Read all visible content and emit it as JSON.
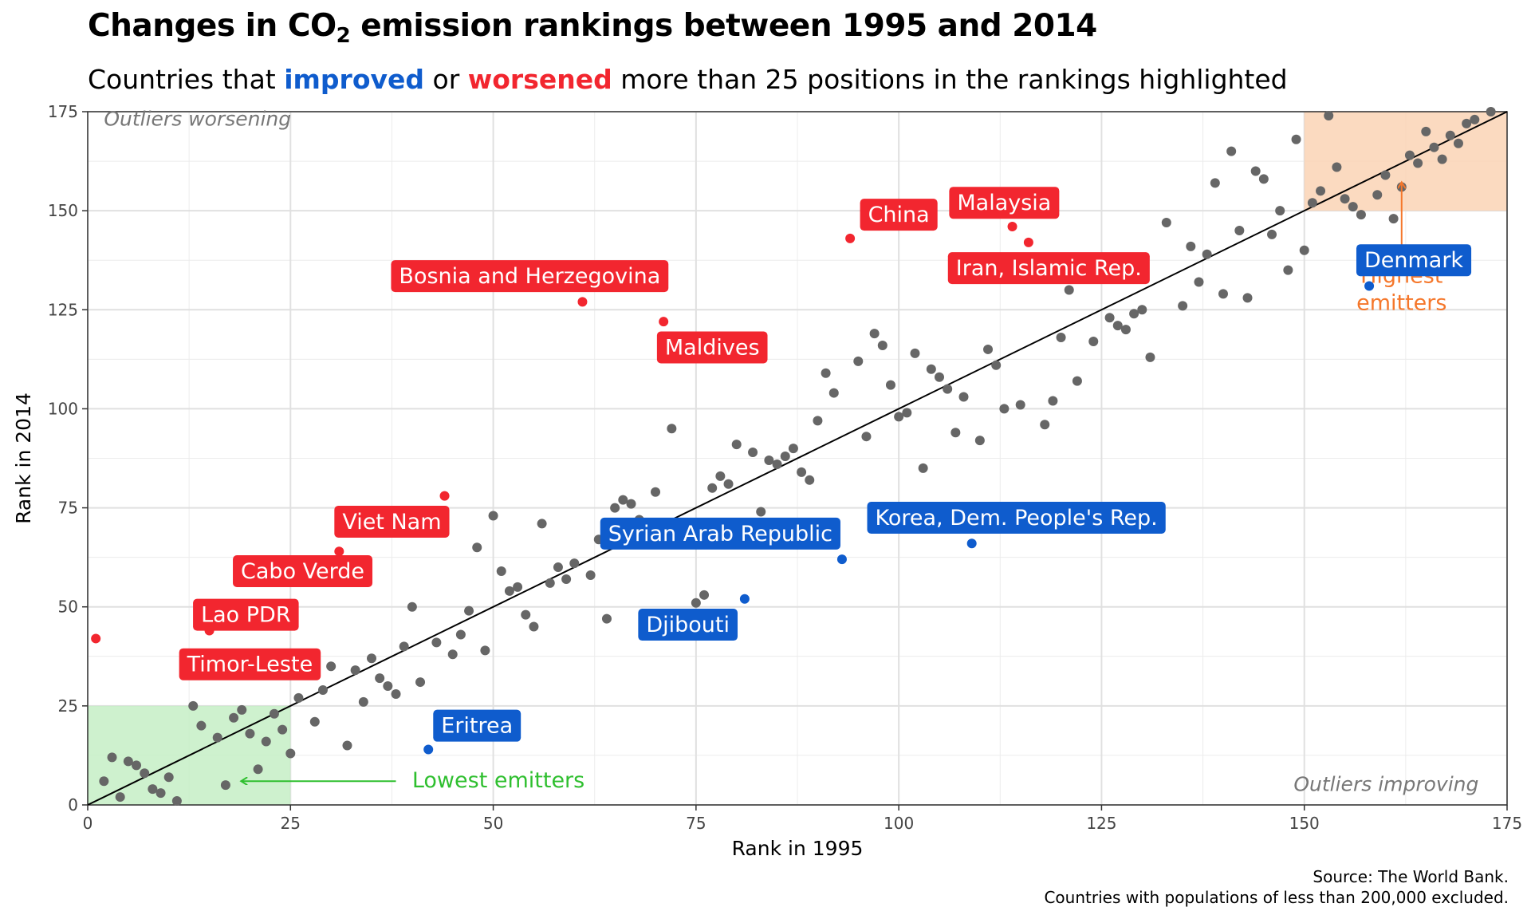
{
  "header": {
    "title_prefix": "Changes in CO",
    "title_sub": "2",
    "title_suffix": " emission rankings between 1995 and 2014",
    "subtitle_part1": "Countries that ",
    "subtitle_improved": "improved",
    "subtitle_part2": " or ",
    "subtitle_worsened": "worsened",
    "subtitle_part3": " more than 25 positions in the rankings highlighted"
  },
  "caption": {
    "line1": "Source: The World Bank.",
    "line2": "Countries with populations of less than 200,000 excluded."
  },
  "colors": {
    "improved": "#0f5ccd",
    "worsened": "#f2262f",
    "neutral": "#666666",
    "lowest_region": "#c6efc6",
    "highest_region": "#fad3b5",
    "lowest_text": "#2fbf2f",
    "highest_text": "#f5772b"
  },
  "chart_data": {
    "type": "scatter",
    "xlabel": "Rank in 1995",
    "ylabel": "Rank in 2014",
    "xlim": [
      0,
      175
    ],
    "ylim": [
      0,
      175
    ],
    "x_ticks": [
      0,
      25,
      50,
      75,
      100,
      125,
      150,
      175
    ],
    "y_ticks": [
      0,
      25,
      50,
      75,
      100,
      125,
      150,
      175
    ],
    "grid": true,
    "reference_line": "y = x",
    "regions": [
      {
        "name": "Lowest emitters",
        "x": [
          0,
          25
        ],
        "y": [
          0,
          25
        ],
        "color": "#c6efc6",
        "text_color": "#2fbf2f"
      },
      {
        "name": "Highest emitters",
        "x": [
          150,
          175
        ],
        "y": [
          150,
          175
        ],
        "color": "#fad3b5",
        "text_color": "#f5772b"
      }
    ],
    "corner_labels": {
      "top_left": "Outliers worsening",
      "bottom_right": "Outliers improving"
    },
    "annotations": [
      {
        "text": "Lowest emitters",
        "color": "#2fbf2f",
        "arrow_from": [
          38,
          6
        ],
        "arrow_to": [
          19,
          6
        ],
        "label_at": [
          40,
          6
        ]
      },
      {
        "text": "Highest\nemitters",
        "color": "#f5772b",
        "arrow_from": [
          162,
          140
        ],
        "arrow_to": [
          162,
          157
        ],
        "label_at": [
          162,
          130
        ]
      }
    ],
    "highlighted": [
      {
        "name": "Timor-Leste",
        "x": 1,
        "y": 42,
        "group": "worsened",
        "label_at": [
          20,
          35.5
        ]
      },
      {
        "name": "Lao PDR",
        "x": 15,
        "y": 44,
        "group": "worsened",
        "label_at": [
          19.5,
          48
        ]
      },
      {
        "name": "Cabo Verde",
        "x": 31,
        "y": 64,
        "group": "worsened",
        "label_at": [
          26.5,
          59
        ]
      },
      {
        "name": "Viet Nam",
        "x": 44,
        "y": 78,
        "group": "worsened",
        "label_at": [
          37.5,
          71.5
        ]
      },
      {
        "name": "Bosnia and Herzegovina",
        "x": 61,
        "y": 127,
        "group": "worsened",
        "label_at": [
          54.5,
          133.5
        ]
      },
      {
        "name": "Maldives",
        "x": 71,
        "y": 122,
        "group": "worsened",
        "label_at": [
          77,
          115.5
        ]
      },
      {
        "name": "China",
        "x": 94,
        "y": 143,
        "group": "worsened",
        "label_at": [
          100,
          149
        ]
      },
      {
        "name": "Malaysia",
        "x": 114,
        "y": 146,
        "group": "worsened",
        "label_at": [
          113,
          152
        ]
      },
      {
        "name": "Iran, Islamic Rep.",
        "x": 116,
        "y": 142,
        "group": "worsened",
        "label_at": [
          118.5,
          135.5
        ]
      },
      {
        "name": "Eritrea",
        "x": 42,
        "y": 14,
        "group": "improved",
        "label_at": [
          48,
          20
        ]
      },
      {
        "name": "Djibouti",
        "x": 81,
        "y": 52,
        "group": "improved",
        "label_at": [
          74,
          45.5
        ]
      },
      {
        "name": "Syrian Arab Republic",
        "x": 93,
        "y": 62,
        "group": "improved",
        "label_at": [
          78,
          68.5
        ]
      },
      {
        "name": "Korea, Dem. People's Rep.",
        "x": 109,
        "y": 66,
        "group": "improved",
        "label_at": [
          114.5,
          72.5
        ]
      },
      {
        "name": "Denmark",
        "x": 158,
        "y": 131,
        "group": "improved",
        "label_at": [
          163.5,
          137.5
        ]
      }
    ],
    "points": [
      [
        2,
        6
      ],
      [
        3,
        12
      ],
      [
        4,
        2
      ],
      [
        5,
        11
      ],
      [
        6,
        10
      ],
      [
        7,
        8
      ],
      [
        8,
        4
      ],
      [
        9,
        3
      ],
      [
        10,
        7
      ],
      [
        11,
        1
      ],
      [
        13,
        25
      ],
      [
        14,
        20
      ],
      [
        16,
        17
      ],
      [
        17,
        5
      ],
      [
        18,
        22
      ],
      [
        19,
        24
      ],
      [
        20,
        18
      ],
      [
        21,
        9
      ],
      [
        22,
        16
      ],
      [
        23,
        23
      ],
      [
        24,
        19
      ],
      [
        25,
        13
      ],
      [
        26,
        27
      ],
      [
        27,
        33
      ],
      [
        28,
        21
      ],
      [
        29,
        29
      ],
      [
        30,
        35
      ],
      [
        32,
        15
      ],
      [
        33,
        34
      ],
      [
        34,
        26
      ],
      [
        35,
        37
      ],
      [
        36,
        32
      ],
      [
        37,
        30
      ],
      [
        38,
        28
      ],
      [
        39,
        40
      ],
      [
        40,
        50
      ],
      [
        41,
        31
      ],
      [
        43,
        41
      ],
      [
        45,
        38
      ],
      [
        46,
        43
      ],
      [
        47,
        49
      ],
      [
        48,
        65
      ],
      [
        49,
        39
      ],
      [
        50,
        73
      ],
      [
        51,
        59
      ],
      [
        52,
        54
      ],
      [
        53,
        55
      ],
      [
        54,
        48
      ],
      [
        55,
        45
      ],
      [
        56,
        71
      ],
      [
        57,
        56
      ],
      [
        58,
        60
      ],
      [
        59,
        57
      ],
      [
        60,
        61
      ],
      [
        62,
        58
      ],
      [
        63,
        67
      ],
      [
        64,
        47
      ],
      [
        65,
        75
      ],
      [
        66,
        77
      ],
      [
        67,
        76
      ],
      [
        68,
        72
      ],
      [
        70,
        79
      ],
      [
        72,
        95
      ],
      [
        75,
        51
      ],
      [
        76,
        53
      ],
      [
        77,
        80
      ],
      [
        78,
        83
      ],
      [
        79,
        81
      ],
      [
        80,
        91
      ],
      [
        82,
        89
      ],
      [
        83,
        74
      ],
      [
        84,
        87
      ],
      [
        85,
        86
      ],
      [
        86,
        88
      ],
      [
        87,
        90
      ],
      [
        88,
        84
      ],
      [
        89,
        82
      ],
      [
        90,
        97
      ],
      [
        91,
        109
      ],
      [
        92,
        104
      ],
      [
        95,
        112
      ],
      [
        96,
        93
      ],
      [
        97,
        119
      ],
      [
        98,
        116
      ],
      [
        99,
        106
      ],
      [
        100,
        98
      ],
      [
        101,
        99
      ],
      [
        102,
        114
      ],
      [
        103,
        85
      ],
      [
        104,
        110
      ],
      [
        105,
        108
      ],
      [
        106,
        105
      ],
      [
        107,
        94
      ],
      [
        108,
        103
      ],
      [
        110,
        92
      ],
      [
        111,
        115
      ],
      [
        112,
        111
      ],
      [
        113,
        100
      ],
      [
        115,
        101
      ],
      [
        118,
        96
      ],
      [
        119,
        102
      ],
      [
        120,
        118
      ],
      [
        121,
        130
      ],
      [
        122,
        107
      ],
      [
        124,
        117
      ],
      [
        126,
        123
      ],
      [
        127,
        121
      ],
      [
        128,
        120
      ],
      [
        129,
        124
      ],
      [
        130,
        125
      ],
      [
        131,
        113
      ],
      [
        133,
        147
      ],
      [
        135,
        126
      ],
      [
        136,
        141
      ],
      [
        137,
        132
      ],
      [
        138,
        139
      ],
      [
        139,
        157
      ],
      [
        140,
        129
      ],
      [
        141,
        165
      ],
      [
        142,
        145
      ],
      [
        143,
        128
      ],
      [
        144,
        160
      ],
      [
        145,
        158
      ],
      [
        146,
        144
      ],
      [
        147,
        150
      ],
      [
        148,
        135
      ],
      [
        149,
        168
      ],
      [
        150,
        140
      ],
      [
        151,
        152
      ],
      [
        152,
        155
      ],
      [
        153,
        174
      ],
      [
        154,
        161
      ],
      [
        155,
        153
      ],
      [
        156,
        151
      ],
      [
        157,
        149
      ],
      [
        159,
        154
      ],
      [
        160,
        159
      ],
      [
        161,
        148
      ],
      [
        162,
        156
      ],
      [
        163,
        164
      ],
      [
        164,
        162
      ],
      [
        165,
        170
      ],
      [
        166,
        166
      ],
      [
        167,
        163
      ],
      [
        168,
        169
      ],
      [
        169,
        167
      ],
      [
        170,
        172
      ],
      [
        171,
        173
      ],
      [
        173,
        175
      ]
    ]
  }
}
